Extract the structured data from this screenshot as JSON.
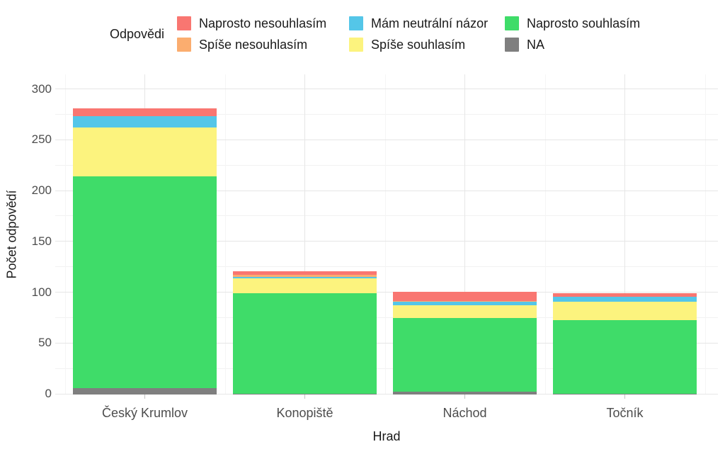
{
  "legend": {
    "title": "Odpovědi",
    "items": [
      {
        "label": "Naprosto nesouhlasím",
        "color": "#F97671"
      },
      {
        "label": "Spíše nesouhlasím",
        "color": "#FBAD6F"
      },
      {
        "label": "Mám neutrální názor",
        "color": "#54C6E8"
      },
      {
        "label": "Spíše souhlasím",
        "color": "#FCF37E"
      },
      {
        "label": "Naprosto souhlasím",
        "color": "#3FDC69"
      },
      {
        "label": "NA",
        "color": "#7F7F7F"
      }
    ]
  },
  "chart_data": {
    "type": "bar",
    "stacked": true,
    "title": "",
    "xlabel": "Hrad",
    "ylabel": "Počet odpovědí",
    "categories": [
      "Český Krumlov",
      "Konopiště",
      "Náchod",
      "Točník"
    ],
    "series": [
      {
        "name": "NA",
        "color": "#7F7F7F",
        "values": [
          6,
          1,
          3,
          1
        ]
      },
      {
        "name": "Naprosto souhlasím",
        "color": "#3FDC69",
        "values": [
          209,
          99,
          72,
          72
        ]
      },
      {
        "name": "Spíše souhlasím",
        "color": "#FCF37E",
        "values": [
          48,
          14,
          13,
          18
        ]
      },
      {
        "name": "Mám neutrální názor",
        "color": "#54C6E8",
        "values": [
          11,
          2,
          3,
          5
        ]
      },
      {
        "name": "Spíše nesouhlasím",
        "color": "#FBAD6F",
        "values": [
          0,
          2,
          1,
          0
        ]
      },
      {
        "name": "Naprosto nesouhlasím",
        "color": "#F97671",
        "values": [
          8,
          3,
          9,
          4
        ]
      }
    ],
    "stack_order_note": "series listed bottom-to-top",
    "totals": [
      282,
      121,
      101,
      100
    ],
    "ylim": [
      0,
      300
    ],
    "yticks": [
      0,
      50,
      100,
      150,
      200,
      250,
      300
    ],
    "yticks_minor": [
      25,
      75,
      125,
      175,
      225,
      275
    ],
    "legend_title": "Odpovědi",
    "legend_position": "top",
    "grid": true,
    "colors": {
      "grid_major": "#E6E6E6",
      "grid_minor": "#F2F2F2",
      "axis_text": "#4D4D4D",
      "axis_title": "#1A1A1A",
      "background": "#FFFFFF"
    }
  }
}
